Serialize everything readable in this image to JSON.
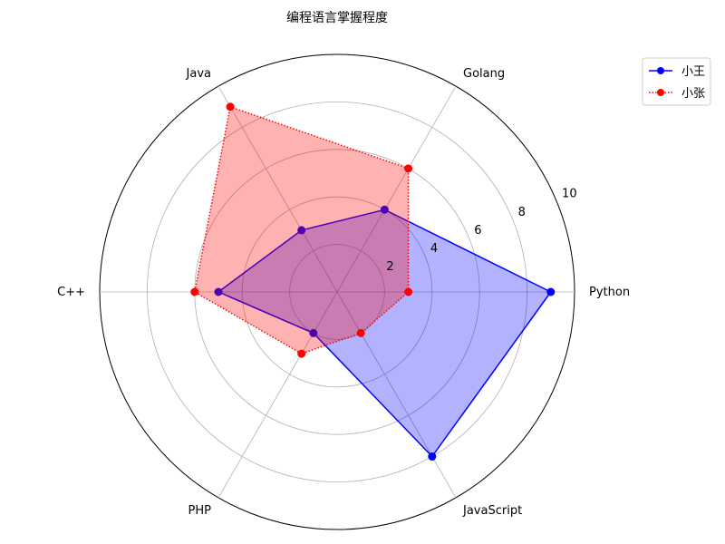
{
  "chart_data": {
    "type": "radar",
    "title": "编程语言掌握程度",
    "categories": [
      "Python",
      "Golang",
      "Java",
      "C++",
      "PHP",
      "JavaScript"
    ],
    "r_ticks": [
      2,
      4,
      6,
      8,
      10
    ],
    "r_range": [
      0,
      10
    ],
    "grid": true,
    "legend_position": "top-right",
    "series": [
      {
        "name": "小王",
        "values": [
          9.0,
          4.0,
          3.0,
          5.0,
          2.0,
          8.0
        ],
        "color": "#0000ff",
        "line_style": "solid",
        "marker": "circle",
        "fill_alpha": 0.3
      },
      {
        "name": "小张",
        "values": [
          3.0,
          6.0,
          9.0,
          6.0,
          3.0,
          2.0
        ],
        "color": "#ff0000",
        "line_style": "dotted",
        "marker": "circle",
        "fill_alpha": 0.3
      }
    ]
  }
}
